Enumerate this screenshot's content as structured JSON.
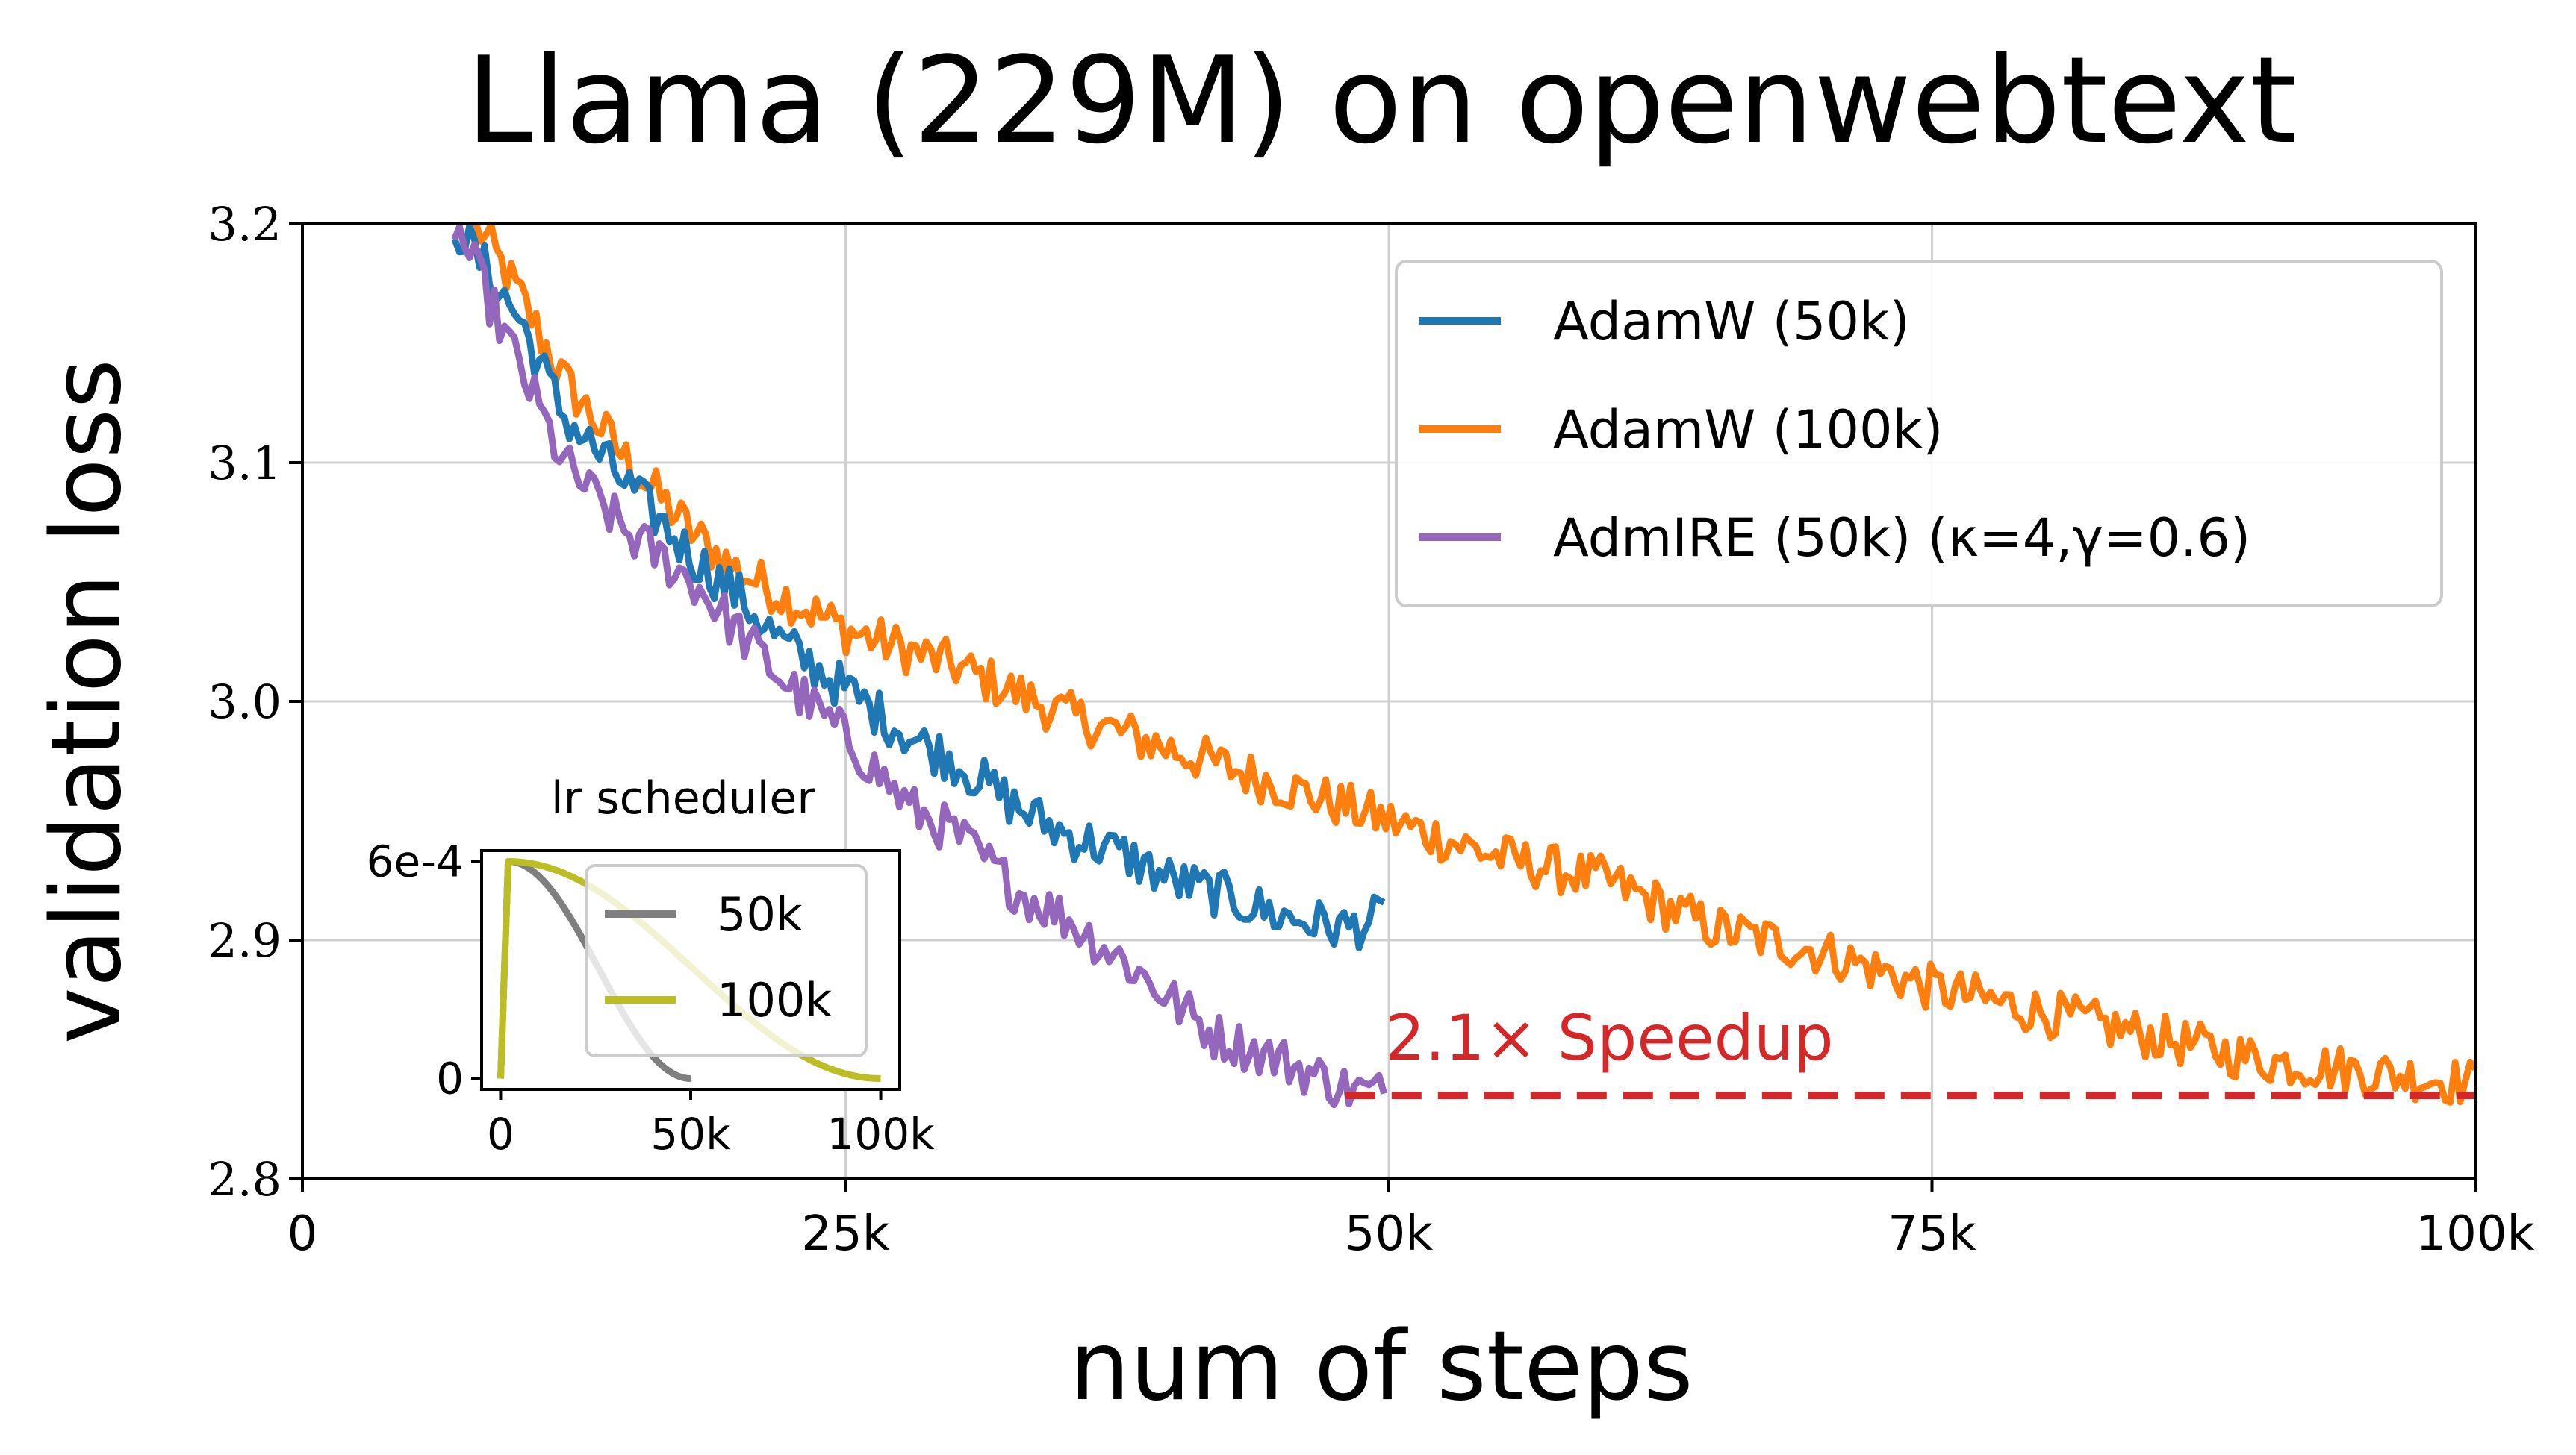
{
  "chart_data": [
    {
      "type": "line",
      "title": "Llama (229M) on openwebtext",
      "xlabel": "num of steps",
      "ylabel": "validation loss",
      "xlim": [
        0,
        100000
      ],
      "ylim": [
        2.8,
        3.2
      ],
      "x_ticks": [
        0,
        25000,
        50000,
        75000,
        100000
      ],
      "x_tick_labels": [
        "0",
        "25k",
        "50k",
        "75k",
        "100k"
      ],
      "y_ticks": [
        2.8,
        2.9,
        3.0,
        3.1,
        3.2
      ],
      "y_tick_labels": [
        "2.8",
        "2.9",
        "3.0",
        "3.1",
        "3.2"
      ],
      "grid": true,
      "legend_position": "top-right",
      "series": [
        {
          "name": "AdamW (50k)",
          "color": "#1f77b4",
          "x": [
            7000,
            10000,
            12000,
            15000,
            18000,
            20000,
            22000,
            25000,
            28000,
            30000,
            33000,
            35000,
            38000,
            40000,
            42000,
            45000,
            48000,
            50000
          ],
          "y": [
            3.2,
            3.16,
            3.12,
            3.09,
            3.06,
            3.045,
            3.025,
            3.005,
            2.985,
            2.975,
            2.955,
            2.945,
            2.935,
            2.925,
            2.92,
            2.91,
            2.905,
            2.91
          ],
          "noise": 0.01
        },
        {
          "name": "AdamW (100k)",
          "color": "#ff7f0e",
          "x": [
            8000,
            10000,
            12000,
            15000,
            18000,
            20000,
            25000,
            30000,
            35000,
            40000,
            45000,
            50000,
            55000,
            60000,
            65000,
            70000,
            75000,
            80000,
            85000,
            90000,
            95000,
            100000
          ],
          "y": [
            3.2,
            3.17,
            3.135,
            3.1,
            3.07,
            3.055,
            3.03,
            3.015,
            2.995,
            2.98,
            2.965,
            2.95,
            2.935,
            2.925,
            2.905,
            2.895,
            2.88,
            2.87,
            2.86,
            2.85,
            2.845,
            2.84
          ],
          "noise": 0.01
        },
        {
          "name": "AdmIRE (50k) (κ=4,γ=0.6)",
          "color": "#9467bd",
          "x": [
            7000,
            10000,
            12000,
            15000,
            18000,
            20000,
            22000,
            25000,
            28000,
            30000,
            33000,
            35000,
            38000,
            40000,
            42000,
            45000,
            48000,
            50000
          ],
          "y": [
            3.2,
            3.14,
            3.1,
            3.07,
            3.05,
            3.03,
            3.01,
            2.985,
            2.955,
            2.945,
            2.92,
            2.91,
            2.89,
            2.875,
            2.86,
            2.85,
            2.838,
            2.835
          ],
          "noise": 0.01
        }
      ],
      "reference_line": {
        "y": 2.835,
        "x_range": [
          48000,
          100000
        ],
        "color": "#d62728",
        "style": "dashed"
      },
      "annotations": [
        {
          "text": "2.1× Speedup",
          "x": 50000,
          "y": 2.855,
          "color": "#d62728"
        }
      ]
    },
    {
      "type": "line",
      "title": "lr scheduler",
      "xlim": [
        -5000,
        105000
      ],
      "ylim": [
        -3e-05,
        0.00063
      ],
      "x_ticks": [
        0,
        50000,
        100000
      ],
      "x_tick_labels": [
        "0",
        "50k",
        "100k"
      ],
      "y_ticks": [
        0,
        0.0006
      ],
      "y_tick_labels": [
        "0",
        "6e-4"
      ],
      "legend_position": "upper-right",
      "series": [
        {
          "name": "50k",
          "color": "#7f7f7f",
          "peak": 0.0006,
          "warmup": 2000,
          "total": 50000
        },
        {
          "name": "100k",
          "color": "#bcbd22",
          "peak": 0.0006,
          "warmup": 2000,
          "total": 100000
        }
      ]
    }
  ]
}
